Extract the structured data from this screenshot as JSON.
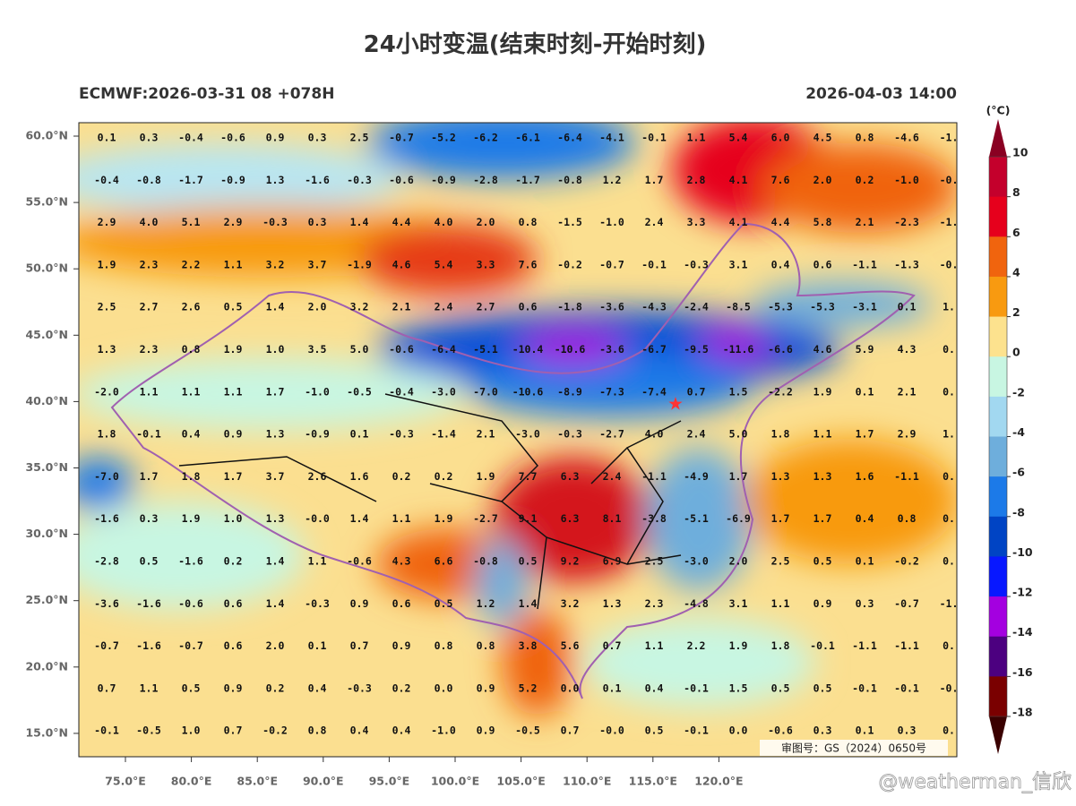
{
  "header": {
    "title": "24小时变温(结束时刻-开始时刻)",
    "model_run": "ECMWF:2026-03-31 08 +078H",
    "valid_time": "2026-04-03 14:00"
  },
  "map": {
    "lat_labels": [
      "60.0°N",
      "55.0°N",
      "50.0°N",
      "45.0°N",
      "40.0°N",
      "35.0°N",
      "30.0°N",
      "25.0°N",
      "20.0°N",
      "15.0°N"
    ],
    "lon_labels": [
      "75.0°E",
      "80.0°E",
      "85.0°E",
      "90.0°E",
      "95.0°E",
      "100.0°E",
      "105.0°E",
      "110.0°E",
      "115.0°E",
      "120.0°E"
    ],
    "grid_values": [
      [
        "0.1",
        "0.3",
        "-0.4",
        "-0.6",
        "0.9",
        "0.3",
        "2.5",
        "-0.7",
        "-5.2",
        "-6.2",
        "-6.1",
        "-6.4",
        "-4.1",
        "-0.1",
        "1.1",
        "5.4",
        "6.0",
        "4.5",
        "0.8",
        "-4.6",
        "-1."
      ],
      [
        "-0.4",
        "-0.8",
        "-1.7",
        "-0.9",
        "1.3",
        "-1.6",
        "-0.3",
        "-0.6",
        "-0.9",
        "-2.8",
        "-1.7",
        "-0.8",
        "1.2",
        "1.7",
        "2.8",
        "4.1",
        "7.6",
        "2.0",
        "0.2",
        "-1.0",
        "-0."
      ],
      [
        "2.9",
        "4.0",
        "5.1",
        "2.9",
        "-0.3",
        "0.3",
        "1.4",
        "4.4",
        "4.0",
        "2.0",
        "0.8",
        "-1.5",
        "-1.0",
        "2.4",
        "3.3",
        "4.1",
        "4.4",
        "5.8",
        "2.1",
        "-2.3",
        "-1."
      ],
      [
        "1.9",
        "2.3",
        "2.2",
        "1.1",
        "3.2",
        "3.7",
        "-1.9",
        "4.6",
        "5.4",
        "3.3",
        "7.6",
        "-0.2",
        "-0.7",
        "-0.1",
        "-0.3",
        "3.1",
        "0.4",
        "0.6",
        "-1.1",
        "-1.3",
        "-0."
      ],
      [
        "2.5",
        "2.7",
        "2.6",
        "0.5",
        "1.4",
        "2.0",
        "3.2",
        "2.1",
        "2.4",
        "2.7",
        "0.6",
        "-1.8",
        "-3.6",
        "-4.3",
        "-2.4",
        "-8.5",
        "-5.3",
        "-5.3",
        "-3.1",
        "0.1",
        "1."
      ],
      [
        "1.3",
        "2.3",
        "0.8",
        "1.9",
        "1.0",
        "3.5",
        "5.0",
        "-0.6",
        "-6.4",
        "-5.1",
        "-10.4",
        "-10.6",
        "-3.6",
        "-6.7",
        "-9.5",
        "-11.6",
        "-6.6",
        "4.6",
        "5.9",
        "4.3",
        "0."
      ],
      [
        "-2.0",
        "1.1",
        "1.1",
        "1.1",
        "1.7",
        "-1.0",
        "-0.5",
        "-0.4",
        "-3.0",
        "-7.0",
        "-10.6",
        "-8.9",
        "-7.3",
        "-7.4",
        "0.7",
        "1.5",
        "-2.2",
        "1.9",
        "0.1",
        "2.1",
        "0."
      ],
      [
        "1.8",
        "-0.1",
        "0.4",
        "0.9",
        "1.3",
        "-0.9",
        "0.1",
        "-0.3",
        "-1.4",
        "2.1",
        "-3.0",
        "-0.3",
        "-2.7",
        "4.0",
        "2.4",
        "5.0",
        "1.8",
        "1.1",
        "1.7",
        "2.9",
        "1."
      ],
      [
        "-7.0",
        "1.7",
        "1.8",
        "1.7",
        "3.7",
        "2.6",
        "1.6",
        "0.2",
        "0.2",
        "1.9",
        "7.7",
        "6.3",
        "2.4",
        "-1.1",
        "-4.9",
        "1.7",
        "1.3",
        "1.3",
        "1.6",
        "-1.1",
        "0."
      ],
      [
        "-1.6",
        "0.3",
        "1.9",
        "1.0",
        "1.3",
        "-0.0",
        "1.4",
        "1.1",
        "1.9",
        "-2.7",
        "9.1",
        "6.3",
        "8.1",
        "-3.8",
        "-5.1",
        "-6.9",
        "1.7",
        "1.7",
        "0.4",
        "0.8",
        "0."
      ],
      [
        "-2.8",
        "0.5",
        "-1.6",
        "0.2",
        "1.4",
        "1.1",
        "-0.6",
        "4.3",
        "6.6",
        "-0.8",
        "0.5",
        "9.2",
        "6.9",
        "2.5",
        "-3.0",
        "2.0",
        "2.5",
        "0.5",
        "0.1",
        "-0.2",
        "0."
      ],
      [
        "-3.6",
        "-1.6",
        "-0.6",
        "0.6",
        "1.4",
        "-0.3",
        "0.9",
        "0.6",
        "0.5",
        "1.2",
        "1.4",
        "3.2",
        "1.3",
        "2.3",
        "-4.8",
        "3.1",
        "1.1",
        "0.9",
        "0.3",
        "-0.7",
        "-1."
      ],
      [
        "-0.7",
        "-1.6",
        "-0.7",
        "0.6",
        "2.0",
        "0.1",
        "0.7",
        "0.9",
        "0.8",
        "0.8",
        "3.8",
        "5.6",
        "0.7",
        "1.1",
        "2.2",
        "1.9",
        "1.8",
        "-0.1",
        "-1.1",
        "-1.1",
        "0."
      ],
      [
        "0.7",
        "1.1",
        "0.5",
        "0.9",
        "0.2",
        "0.4",
        "-0.3",
        "0.2",
        "0.0",
        "0.9",
        "5.2",
        "0.0",
        "0.1",
        "0.4",
        "-0.1",
        "1.5",
        "0.5",
        "0.5",
        "-0.1",
        "-0.1",
        "-0."
      ],
      [
        "-0.1",
        "-0.5",
        "1.0",
        "0.7",
        "-0.2",
        "0.8",
        "0.4",
        "0.4",
        "-1.0",
        "0.9",
        "-0.5",
        "0.7",
        "-0.0",
        "0.5",
        "-0.1",
        "0.0",
        "-0.6",
        "0.3",
        "0.1",
        "0.3",
        "0."
      ]
    ],
    "approval_stamp": "审图号：GS（2024）0650号",
    "watermark": "@weatherman_信欣"
  },
  "colorbar": {
    "unit": "(°C)",
    "ticks": [
      10,
      8,
      6,
      4,
      2,
      0,
      -2,
      -4,
      -6,
      -8,
      -10,
      -12,
      -14,
      -16,
      -18
    ],
    "colors": [
      "#c4002c",
      "#e6001c",
      "#f0640e",
      "#f89a10",
      "#fde28e",
      "#c8f6e2",
      "#a2d8f0",
      "#6eaedc",
      "#1c7ae8",
      "#0044c4",
      "#0818ff",
      "#a400e0",
      "#4c0080",
      "#7a0000"
    ],
    "extend_colors": [
      "#8a0022",
      "#3a0000"
    ]
  }
}
